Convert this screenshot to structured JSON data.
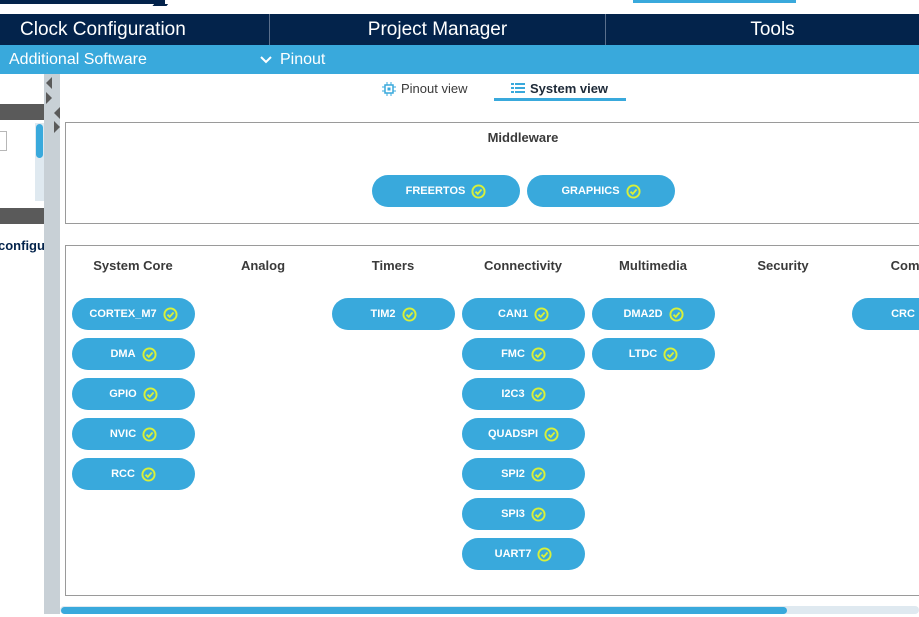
{
  "main_nav": {
    "tabs": [
      {
        "label": "Clock Configuration"
      },
      {
        "label": "Project Manager"
      },
      {
        "label": "Tools"
      }
    ]
  },
  "sub_nav": {
    "left_label": "Additional Software",
    "right_label": "Pinout",
    "right_icon": "chevron-down-icon"
  },
  "left_panel": {
    "partial_text": "configu"
  },
  "view_tabs": [
    {
      "label": "Pinout view",
      "icon": "chip-icon",
      "active": false
    },
    {
      "label": "System view",
      "icon": "grid-list-icon",
      "active": true
    }
  ],
  "middleware": {
    "title": "Middleware",
    "items": [
      "FREERTOS",
      "GRAPHICS"
    ]
  },
  "categories": [
    {
      "title": "System Core",
      "items": [
        "CORTEX_M7",
        "DMA",
        "GPIO",
        "NVIC",
        "RCC"
      ]
    },
    {
      "title": "Analog",
      "items": []
    },
    {
      "title": "Timers",
      "items": [
        "TIM2"
      ]
    },
    {
      "title": "Connectivity",
      "items": [
        "CAN1",
        "FMC",
        "I2C3",
        "QUADSPI",
        "SPI2",
        "SPI3",
        "UART7"
      ]
    },
    {
      "title": "Multimedia",
      "items": [
        "DMA2D",
        "LTDC"
      ]
    },
    {
      "title": "Security",
      "items": []
    },
    {
      "title": "Compu",
      "items": [
        "CRC"
      ]
    }
  ],
  "colors": {
    "nav_dark": "#03234b",
    "accent": "#39a9dc",
    "check": "#d8f03a"
  },
  "pill_icon": "check-circle-icon"
}
